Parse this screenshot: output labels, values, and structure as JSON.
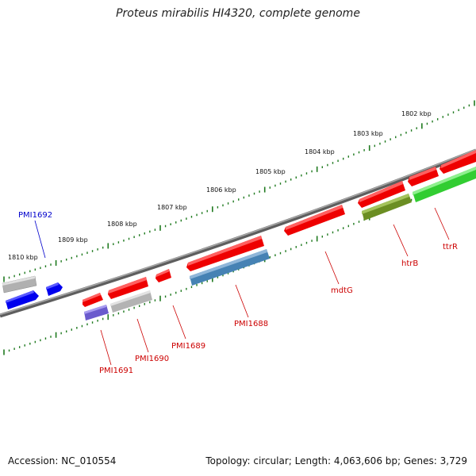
{
  "title": "Proteus mirabilis HI4320, complete genome",
  "footer": {
    "accession": "Accession: NC_010554",
    "summary": "Topology: circular; Length: 4,063,606 bp; Genes: 3,729"
  },
  "colors": {
    "backbone": "#7a7a7a",
    "tick": "#1f7a1f",
    "label_red": "#cc0000",
    "label_blue": "#0000cc",
    "gene_red": "#ee0000",
    "gene_grey": "#b3b3b3",
    "gene_blue": "#0000ee",
    "gene_purple": "#6a5acd",
    "gene_steel": "#4682b4",
    "gene_olive": "#6b8e23",
    "gene_green": "#32cd32"
  },
  "scale_labels": [
    "1810 kbp",
    "1809 kbp",
    "1808 kbp",
    "1807 kbp",
    "1806 kbp",
    "1805 kbp",
    "1804 kbp",
    "1803 kbp",
    "1802 kbp"
  ],
  "gene_labels": [
    {
      "text": "PMI1692",
      "color": "blue"
    },
    {
      "text": "PMI1691",
      "color": "red"
    },
    {
      "text": "PMI1690",
      "color": "red"
    },
    {
      "text": "PMI1689",
      "color": "red"
    },
    {
      "text": "PMI1688",
      "color": "red"
    },
    {
      "text": "mdtG",
      "color": "red"
    },
    {
      "text": "htrB",
      "color": "red"
    },
    {
      "text": "ttrR",
      "color": "red"
    }
  ]
}
